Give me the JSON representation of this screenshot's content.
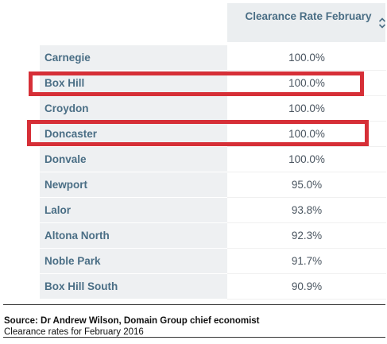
{
  "table": {
    "column_header": "Clearance Rate February",
    "sort_icon": "sort-updown-icon",
    "rows": [
      {
        "suburb": "Carnegie",
        "rate": "100.0%"
      },
      {
        "suburb": "Box Hill",
        "rate": "100.0%"
      },
      {
        "suburb": "Croydon",
        "rate": "100.0%"
      },
      {
        "suburb": "Doncaster",
        "rate": "100.0%"
      },
      {
        "suburb": "Donvale",
        "rate": "100.0%"
      },
      {
        "suburb": "Newport",
        "rate": "95.0%"
      },
      {
        "suburb": "Lalor",
        "rate": "93.8%"
      },
      {
        "suburb": "Altona North",
        "rate": "92.3%"
      },
      {
        "suburb": "Noble Park",
        "rate": "91.7%"
      },
      {
        "suburb": "Box Hill South",
        "rate": "90.9%"
      }
    ]
  },
  "highlights": [
    "Box Hill",
    "Doncaster"
  ],
  "highlight_color": "#d62f37",
  "footer": {
    "source": "Source: Dr Andrew Wilson, Domain Group chief economist",
    "note": "Clearance rates for February 2016"
  }
}
